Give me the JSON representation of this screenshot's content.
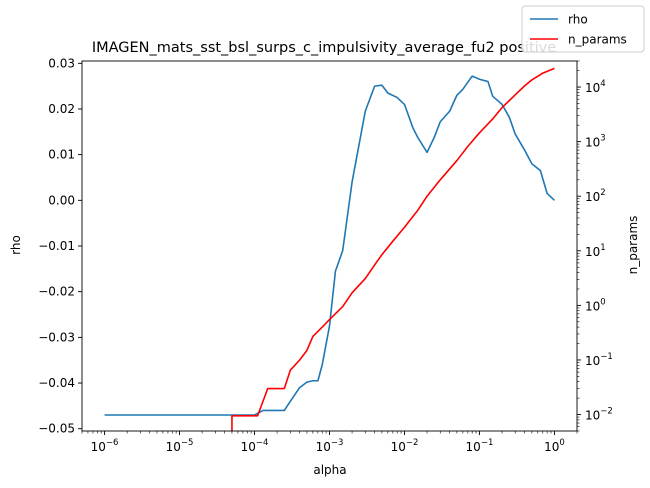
{
  "chart_data": {
    "type": "line",
    "title": "IMAGEN_mats_sst_bsl_surps_c_impulsivity_average_fu2 positive",
    "xlabel": "alpha",
    "ylabel_left": "rho",
    "ylabel_right": "n_params",
    "x_scale": "log",
    "y_right_scale": "log",
    "xlim": [
      5e-07,
      2
    ],
    "ylim_left": [
      -0.0505,
      0.0305
    ],
    "ylim_right": [
      0.005,
      30000
    ],
    "x_ticks": [
      {
        "base": "10",
        "exp": "−6",
        "value": 1e-06
      },
      {
        "base": "10",
        "exp": "−5",
        "value": 1e-05
      },
      {
        "base": "10",
        "exp": "−4",
        "value": 0.0001
      },
      {
        "base": "10",
        "exp": "−3",
        "value": 0.001
      },
      {
        "base": "10",
        "exp": "−2",
        "value": 0.01
      },
      {
        "base": "10",
        "exp": "−1",
        "value": 0.1
      },
      {
        "base": "10",
        "exp": "0",
        "value": 1
      }
    ],
    "y_left_ticks": [
      {
        "label": "0.03",
        "value": 0.03
      },
      {
        "label": "0.02",
        "value": 0.02
      },
      {
        "label": "0.01",
        "value": 0.01
      },
      {
        "label": "0.00",
        "value": 0.0
      },
      {
        "label": "−0.01",
        "value": -0.01
      },
      {
        "label": "−0.02",
        "value": -0.02
      },
      {
        "label": "−0.03",
        "value": -0.03
      },
      {
        "label": "−0.04",
        "value": -0.04
      },
      {
        "label": "−0.05",
        "value": -0.05
      }
    ],
    "y_right_ticks": [
      {
        "base": "10",
        "exp": "4",
        "value": 10000
      },
      {
        "base": "10",
        "exp": "3",
        "value": 1000
      },
      {
        "base": "10",
        "exp": "2",
        "value": 100
      },
      {
        "base": "10",
        "exp": "1",
        "value": 10
      },
      {
        "base": "10",
        "exp": "0",
        "value": 1
      },
      {
        "base": "10",
        "exp": "−1",
        "value": 0.1
      },
      {
        "base": "10",
        "exp": "−2",
        "value": 0.01
      }
    ],
    "legend_position": "top-right",
    "series": [
      {
        "name": "rho",
        "color": "#1f77b4",
        "axis": "left",
        "x": [
          1e-06,
          3e-06,
          1e-05,
          3e-05,
          0.0001,
          0.00013,
          0.00015,
          0.0002,
          0.00025,
          0.0003,
          0.0004,
          0.0005,
          0.0006,
          0.0007,
          0.0008,
          0.001,
          0.0012,
          0.0015,
          0.002,
          0.003,
          0.004,
          0.005,
          0.006,
          0.008,
          0.01,
          0.013,
          0.015,
          0.02,
          0.025,
          0.03,
          0.04,
          0.05,
          0.06,
          0.08,
          0.1,
          0.13,
          0.15,
          0.2,
          0.25,
          0.3,
          0.4,
          0.5,
          0.65,
          0.8,
          1.0
        ],
        "y": [
          -0.047,
          -0.047,
          -0.047,
          -0.047,
          -0.047,
          -0.046,
          -0.046,
          -0.046,
          -0.046,
          -0.044,
          -0.041,
          -0.0398,
          -0.0395,
          -0.0395,
          -0.036,
          -0.0275,
          -0.0155,
          -0.011,
          0.004,
          0.0195,
          0.025,
          0.0252,
          0.0235,
          0.0225,
          0.021,
          0.0158,
          0.0138,
          0.0105,
          0.0138,
          0.0172,
          0.0195,
          0.023,
          0.0243,
          0.0272,
          0.0265,
          0.026,
          0.0228,
          0.021,
          0.0182,
          0.0145,
          0.011,
          0.008,
          0.0065,
          0.0015,
          0.0
        ]
      },
      {
        "name": "n_params",
        "color": "#ff0000",
        "axis": "right",
        "x": [
          5e-05,
          5e-05,
          0.00011,
          0.00015,
          0.00025,
          0.0003,
          0.0004,
          0.0005,
          0.0006,
          0.0008,
          0.001,
          0.0015,
          0.002,
          0.003,
          0.004,
          0.005,
          0.007,
          0.01,
          0.015,
          0.02,
          0.03,
          0.05,
          0.07,
          0.1,
          0.15,
          0.2,
          0.3,
          0.4,
          0.5,
          0.7,
          1.0
        ],
        "y": [
          0.004,
          0.0095,
          0.0095,
          0.03,
          0.03,
          0.065,
          0.1,
          0.15,
          0.27,
          0.4,
          0.55,
          0.95,
          1.7,
          3.1,
          5.5,
          8.5,
          15,
          27,
          55,
          100,
          200,
          450,
          820,
          1450,
          2600,
          4200,
          7200,
          10500,
          13500,
          18000,
          22000
        ]
      }
    ]
  }
}
